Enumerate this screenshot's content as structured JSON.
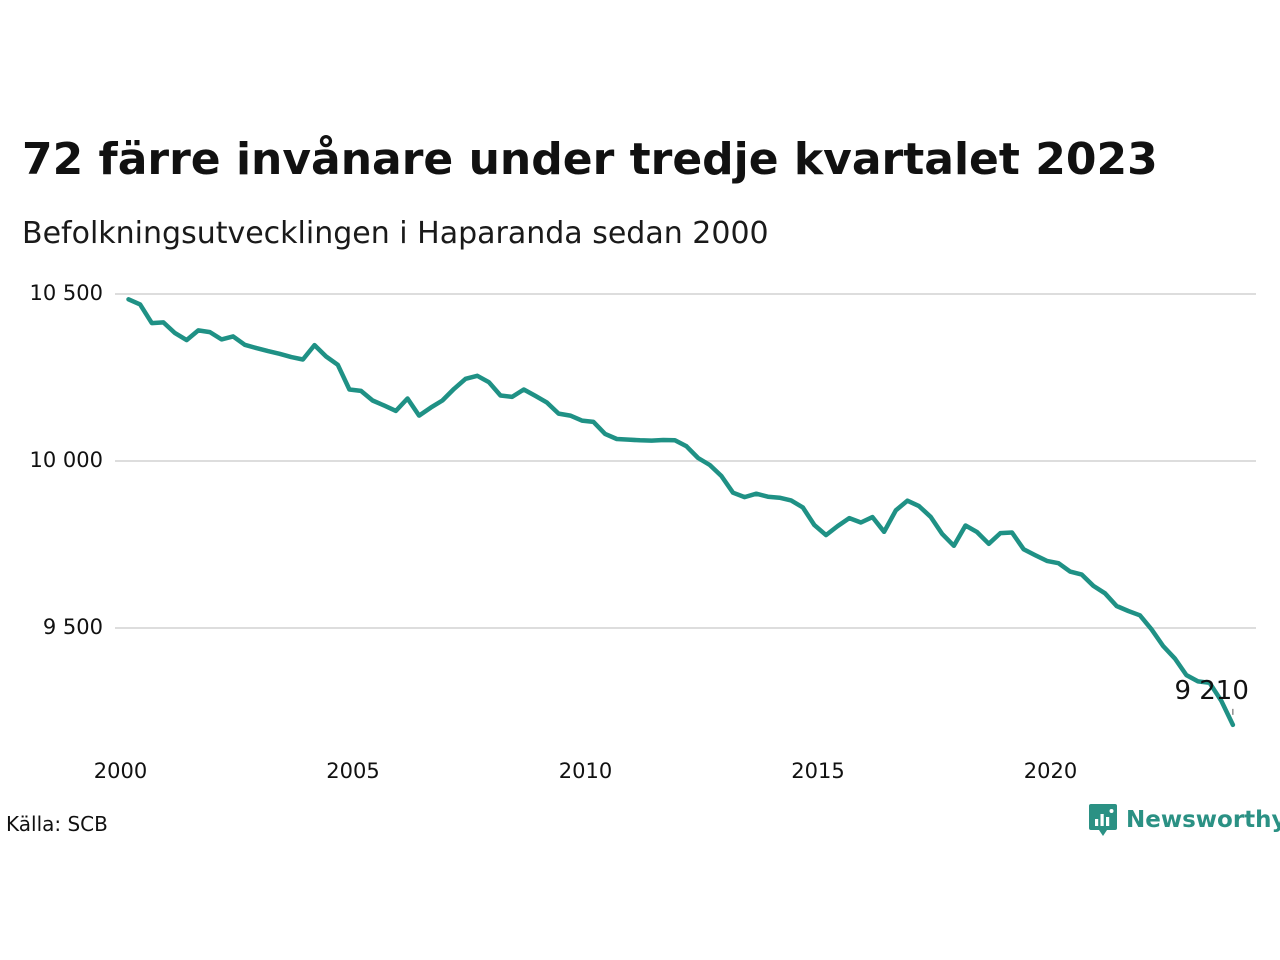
{
  "title": "72 färre invånare under tredje kvartalet 2023",
  "subtitle": "Befolkningsutvecklingen i Haparanda sedan 2000",
  "source": "Källa: SCB",
  "brand": {
    "name": "Newsworthy",
    "logo_icon": "newsworthy-chart-icon",
    "color": "#2b9184"
  },
  "chart_data": {
    "type": "line",
    "title": "72 färre invånare under tredje kvartalet 2023",
    "subtitle": "Befolkningsutvecklingen i Haparanda sedan 2000",
    "xlabel": "",
    "ylabel": "",
    "xlim": [
      2000,
      2023.5
    ],
    "ylim": [
      9200,
      10500
    ],
    "x_ticks": [
      2000,
      2005,
      2010,
      2015,
      2020
    ],
    "y_ticks": [
      9500,
      10000,
      10500
    ],
    "y_tick_labels": [
      "9 500",
      "10 000",
      "10 500"
    ],
    "grid": "horizontal",
    "legend": "none",
    "line_color": "#1f9185",
    "grid_color": "#dddddd",
    "end_label": "9 210",
    "series": [
      {
        "values": [
          [
            2000.0,
            10484
          ],
          [
            2000.25,
            10469
          ],
          [
            2000.5,
            10413
          ],
          [
            2000.75,
            10415
          ],
          [
            2001.0,
            10383
          ],
          [
            2001.25,
            10362
          ],
          [
            2001.5,
            10391
          ],
          [
            2001.75,
            10386
          ],
          [
            2002.0,
            10364
          ],
          [
            2002.25,
            10373
          ],
          [
            2002.5,
            10348
          ],
          [
            2002.75,
            10338
          ],
          [
            2003.0,
            10329
          ],
          [
            2003.25,
            10321
          ],
          [
            2003.5,
            10311
          ],
          [
            2003.75,
            10304
          ],
          [
            2004.0,
            10347
          ],
          [
            2004.25,
            10313
          ],
          [
            2004.5,
            10288
          ],
          [
            2004.75,
            10214
          ],
          [
            2005.0,
            10210
          ],
          [
            2005.25,
            10181
          ],
          [
            2005.5,
            10166
          ],
          [
            2005.75,
            10150
          ],
          [
            2006.0,
            10187
          ],
          [
            2006.25,
            10136
          ],
          [
            2006.5,
            10160
          ],
          [
            2006.75,
            10181
          ],
          [
            2007.0,
            10216
          ],
          [
            2007.25,
            10246
          ],
          [
            2007.5,
            10255
          ],
          [
            2007.75,
            10236
          ],
          [
            2008.0,
            10196
          ],
          [
            2008.25,
            10192
          ],
          [
            2008.5,
            10214
          ],
          [
            2008.75,
            10195
          ],
          [
            2009.0,
            10175
          ],
          [
            2009.25,
            10142
          ],
          [
            2009.5,
            10136
          ],
          [
            2009.75,
            10121
          ],
          [
            2010.0,
            10117
          ],
          [
            2010.25,
            10081
          ],
          [
            2010.5,
            10066
          ],
          [
            2010.75,
            10064
          ],
          [
            2011.0,
            10062
          ],
          [
            2011.25,
            10061
          ],
          [
            2011.5,
            10063
          ],
          [
            2011.75,
            10062
          ],
          [
            2012.0,
            10044
          ],
          [
            2012.25,
            10009
          ],
          [
            2012.5,
            9988
          ],
          [
            2012.75,
            9955
          ],
          [
            2013.0,
            9905
          ],
          [
            2013.25,
            9892
          ],
          [
            2013.5,
            9902
          ],
          [
            2013.75,
            9893
          ],
          [
            2014.0,
            9890
          ],
          [
            2014.25,
            9882
          ],
          [
            2014.5,
            9861
          ],
          [
            2014.75,
            9808
          ],
          [
            2015.0,
            9778
          ],
          [
            2015.25,
            9805
          ],
          [
            2015.5,
            9829
          ],
          [
            2015.75,
            9816
          ],
          [
            2016.0,
            9832
          ],
          [
            2016.25,
            9788
          ],
          [
            2016.5,
            9852
          ],
          [
            2016.75,
            9881
          ],
          [
            2017.0,
            9865
          ],
          [
            2017.25,
            9833
          ],
          [
            2017.5,
            9781
          ],
          [
            2017.75,
            9746
          ],
          [
            2018.0,
            9807
          ],
          [
            2018.25,
            9787
          ],
          [
            2018.5,
            9752
          ],
          [
            2018.75,
            9784
          ],
          [
            2019.0,
            9786
          ],
          [
            2019.25,
            9736
          ],
          [
            2019.5,
            9718
          ],
          [
            2019.75,
            9701
          ],
          [
            2020.0,
            9694
          ],
          [
            2020.25,
            9669
          ],
          [
            2020.5,
            9660
          ],
          [
            2020.75,
            9626
          ],
          [
            2021.0,
            9604
          ],
          [
            2021.25,
            9566
          ],
          [
            2021.5,
            9551
          ],
          [
            2021.75,
            9538
          ],
          [
            2022.0,
            9496
          ],
          [
            2022.25,
            9446
          ],
          [
            2022.5,
            9409
          ],
          [
            2022.75,
            9359
          ],
          [
            2023.0,
            9340
          ],
          [
            2023.25,
            9336
          ],
          [
            2023.5,
            9282
          ],
          [
            2023.75,
            9210
          ]
        ]
      }
    ]
  }
}
